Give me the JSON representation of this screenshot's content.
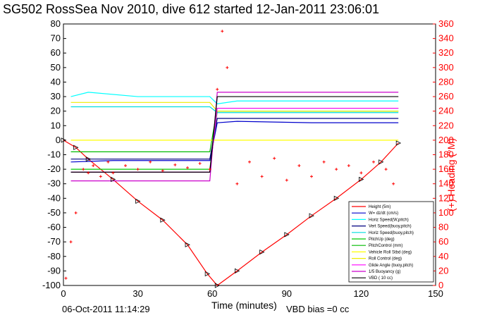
{
  "chart_data": {
    "type": "line",
    "title": "SG502 RossSea Nov 2010, dive 612 started 12-Jan-2011 23:06:01",
    "xlabel": "Time (minutes)",
    "ylabel_right": "(+) Heading (°M)",
    "xlim": [
      0,
      150
    ],
    "ylim": [
      -100,
      80
    ],
    "ylim_right": [
      0,
      360
    ],
    "x_ticks": [
      "0",
      "30",
      "60",
      "90",
      "120",
      "150"
    ],
    "y_ticks": [
      "-100",
      "-90",
      "-80",
      "-70",
      "-60",
      "-50",
      "-40",
      "-30",
      "-20",
      "-10",
      "0",
      "10",
      "20",
      "30",
      "40",
      "50",
      "60",
      "70",
      "80"
    ],
    "y_ticks_right": [
      "0",
      "20",
      "40",
      "60",
      "80",
      "100",
      "120",
      "140",
      "160",
      "180",
      "200",
      "220",
      "240",
      "260",
      "280",
      "300",
      "320",
      "340",
      "360"
    ],
    "grid": true,
    "legend_position": "bottom-right",
    "footer_date": "06-Oct-2011 11:14:29",
    "footer_vbd": "VBD bias =0 cc",
    "series": [
      {
        "name": "Height (5m)",
        "color": "#ff0000",
        "x": [
          0,
          5,
          10,
          20,
          30,
          40,
          50,
          58,
          62,
          70,
          80,
          90,
          100,
          110,
          120,
          128,
          135
        ],
        "y": [
          0,
          -5,
          -13,
          -27,
          -42,
          -55,
          -72,
          -92,
          -100,
          -90,
          -77,
          -65,
          -52,
          -40,
          -27,
          -15,
          -2
        ]
      },
      {
        "name": "W= dz/dt (cm/s)",
        "color": "#0000cc",
        "x": [
          3,
          20,
          40,
          59,
          62,
          70,
          100,
          135
        ],
        "y": [
          -15,
          -14,
          -14,
          -14,
          12,
          13,
          12,
          12
        ]
      },
      {
        "name": "Horiz Speed(W,pitch)",
        "color": "#00ffff",
        "x": [
          3,
          10,
          30,
          59,
          62,
          70,
          100,
          135
        ],
        "y": [
          30,
          33,
          30,
          30,
          25,
          27,
          27,
          27
        ]
      },
      {
        "name": "Vert Speed(buoy,pitch)",
        "color": "#000080",
        "x": [
          3,
          59,
          62,
          135
        ],
        "y": [
          -13,
          -13,
          15,
          15
        ]
      },
      {
        "name": "Horiz Speed(buoy,pitch)",
        "color": "#00dddd",
        "x": [
          3,
          59,
          62,
          135
        ],
        "y": [
          23,
          23,
          19,
          19
        ]
      },
      {
        "name": "PitchUp (deg)",
        "color": "#00cc00",
        "x": [
          3,
          59,
          62,
          135
        ],
        "y": [
          -20,
          -20,
          20,
          20
        ]
      },
      {
        "name": "PitchControl (mm)",
        "color": "#00bb00",
        "x": [
          3,
          59,
          62,
          135
        ],
        "y": [
          -8,
          -8,
          22,
          22
        ]
      },
      {
        "name": "Vehicle Roll Stbd (deg)",
        "color": "#ffff00",
        "x": [
          3,
          59,
          62,
          135
        ],
        "y": [
          0,
          0,
          0,
          0
        ]
      },
      {
        "name": "Roll Control (deg)",
        "color": "#eeee00",
        "x": [
          3,
          59,
          62,
          135
        ],
        "y": [
          26,
          26,
          20,
          20
        ]
      },
      {
        "name": "Glide Angle (buoy,pitch)",
        "color": "#ff00ff",
        "x": [
          3,
          59,
          62,
          135
        ],
        "y": [
          -22,
          -22,
          22,
          22
        ]
      },
      {
        "name": "1/5 Buoyancy (g)",
        "color": "#cc00cc",
        "x": [
          3,
          59,
          62,
          135
        ],
        "y": [
          -28,
          -28,
          33,
          33
        ]
      },
      {
        "name": "VBD ( 10 cc)",
        "color": "#000000",
        "x": [
          3,
          59,
          62,
          135
        ],
        "y": [
          -22,
          -22,
          30,
          30
        ]
      }
    ],
    "heading": {
      "name": "Heading",
      "color": "#ff0000",
      "x": [
        1,
        3,
        5,
        8,
        10,
        12,
        15,
        18,
        20,
        25,
        30,
        35,
        40,
        45,
        50,
        55,
        59,
        62,
        64,
        66,
        70,
        75,
        80,
        85,
        90,
        95,
        100,
        105,
        110,
        115,
        120,
        125,
        130,
        133
      ],
      "y": [
        10,
        60,
        100,
        160,
        155,
        165,
        150,
        170,
        155,
        165,
        160,
        170,
        158,
        166,
        162,
        168,
        160,
        270,
        350,
        300,
        140,
        170,
        150,
        175,
        145,
        165,
        150,
        170,
        160,
        165,
        155,
        170,
        160,
        140
      ]
    }
  }
}
